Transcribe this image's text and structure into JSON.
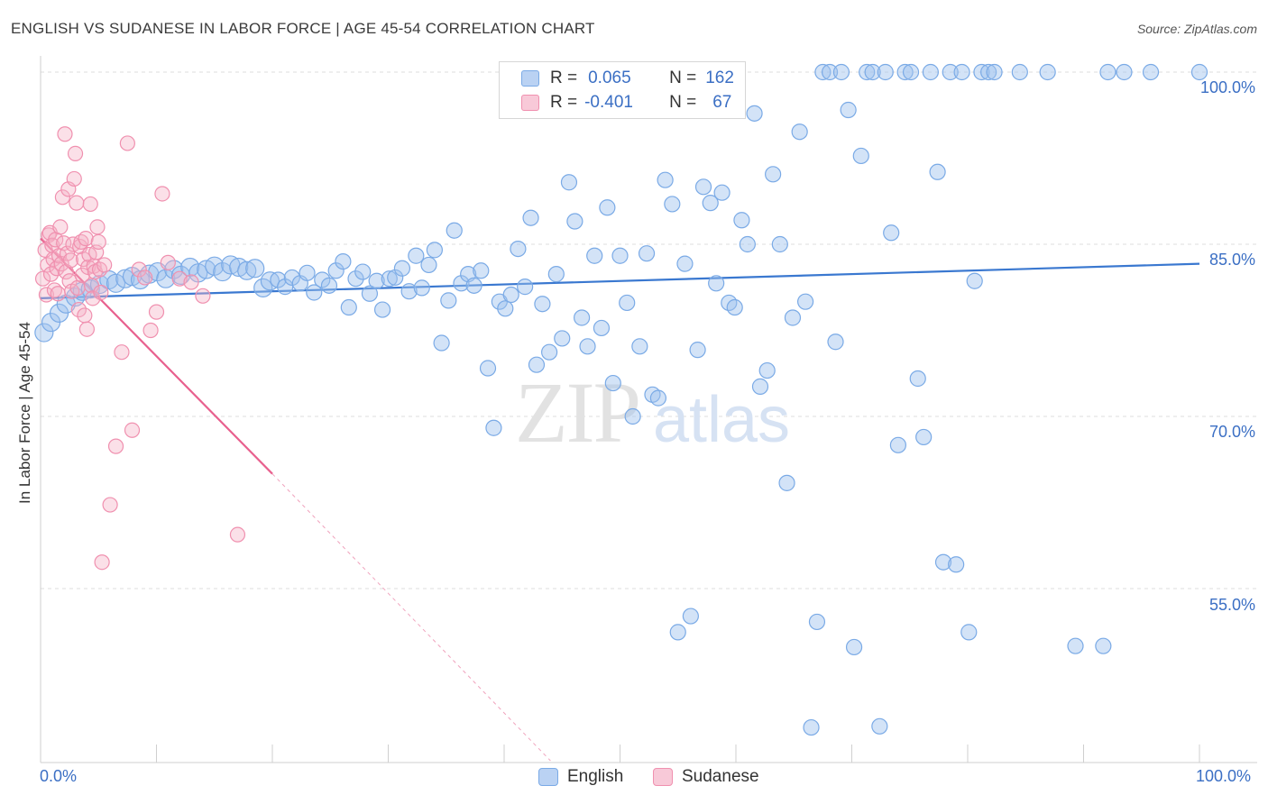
{
  "title": "ENGLISH VS SUDANESE IN LABOR FORCE | AGE 45-54 CORRELATION CHART",
  "source": "Source: ZipAtlas.com",
  "legend": {
    "rows": [
      {
        "r_label": "R =",
        "r_value": "0.065",
        "n_label": "N =",
        "n_value": "162",
        "color": "#9ec0ee"
      },
      {
        "r_label": "R =",
        "r_value": "-0.401",
        "n_label": "N =",
        "n_value": "67",
        "color": "#f5b1c6"
      }
    ]
  },
  "bottom_legend": [
    {
      "label": "English",
      "color": "#9ec0ee"
    },
    {
      "label": "Sudanese",
      "color": "#f5b1c6"
    }
  ],
  "chart_data": {
    "type": "scatter",
    "title": "ENGLISH VS SUDANESE IN LABOR FORCE | AGE 45-54 CORRELATION CHART",
    "xlabel": "",
    "ylabel": "In Labor Force | Age 45-54",
    "xlim": [
      0,
      100
    ],
    "ylim": [
      40,
      101
    ],
    "x_tick_labels": [
      "0.0%",
      "100.0%"
    ],
    "y_tick_values": [
      55,
      70,
      85,
      100
    ],
    "y_tick_labels": [
      "55.0%",
      "70.0%",
      "85.0%",
      "100.0%"
    ],
    "grid": true,
    "legend_position": "top-center",
    "watermark": "ZIPatlas",
    "series": [
      {
        "name": "English",
        "color": "#7aaae6",
        "trend": {
          "x": [
            0,
            100
          ],
          "y": [
            80.3,
            83.3
          ]
        },
        "points": [
          [
            0.3,
            77.3
          ],
          [
            0.9,
            78.2
          ],
          [
            1.6,
            79.0
          ],
          [
            2.2,
            79.8
          ],
          [
            3.0,
            80.4
          ],
          [
            3.6,
            80.9
          ],
          [
            4.3,
            81.1
          ],
          [
            5.1,
            81.5
          ],
          [
            5.9,
            81.9
          ],
          [
            6.5,
            81.6
          ],
          [
            7.3,
            82.0
          ],
          [
            7.9,
            82.2
          ],
          [
            8.6,
            81.9
          ],
          [
            9.4,
            82.4
          ],
          [
            10.1,
            82.6
          ],
          [
            10.8,
            82.0
          ],
          [
            11.5,
            82.8
          ],
          [
            12.1,
            82.3
          ],
          [
            12.9,
            83.0
          ],
          [
            13.6,
            82.5
          ],
          [
            14.3,
            82.8
          ],
          [
            15.0,
            83.1
          ],
          [
            15.7,
            82.6
          ],
          [
            16.4,
            83.2
          ],
          [
            17.1,
            83.0
          ],
          [
            17.8,
            82.7
          ],
          [
            18.5,
            82.9
          ],
          [
            19.2,
            81.2
          ],
          [
            19.8,
            81.8
          ],
          [
            20.5,
            81.9
          ],
          [
            21.1,
            81.3
          ],
          [
            21.7,
            82.1
          ],
          [
            22.4,
            81.6
          ],
          [
            23.0,
            82.5
          ],
          [
            23.6,
            80.8
          ],
          [
            24.3,
            81.9
          ],
          [
            24.9,
            81.4
          ],
          [
            25.5,
            82.7
          ],
          [
            26.1,
            83.5
          ],
          [
            26.6,
            79.5
          ],
          [
            27.2,
            82.0
          ],
          [
            27.8,
            82.6
          ],
          [
            28.4,
            80.7
          ],
          [
            29.0,
            81.8
          ],
          [
            29.5,
            79.3
          ],
          [
            30.1,
            82.0
          ],
          [
            30.6,
            82.1
          ],
          [
            31.2,
            82.9
          ],
          [
            31.8,
            80.9
          ],
          [
            32.4,
            84.0
          ],
          [
            32.9,
            81.2
          ],
          [
            33.5,
            83.2
          ],
          [
            34.0,
            84.5
          ],
          [
            34.6,
            76.4
          ],
          [
            35.2,
            80.1
          ],
          [
            35.7,
            86.2
          ],
          [
            36.3,
            81.6
          ],
          [
            36.9,
            82.4
          ],
          [
            37.4,
            81.4
          ],
          [
            38.0,
            82.7
          ],
          [
            38.6,
            74.2
          ],
          [
            39.1,
            69.0
          ],
          [
            39.6,
            80.0
          ],
          [
            40.1,
            79.4
          ],
          [
            40.6,
            80.6
          ],
          [
            41.2,
            84.6
          ],
          [
            41.8,
            81.3
          ],
          [
            42.3,
            87.3
          ],
          [
            42.8,
            74.5
          ],
          [
            43.3,
            79.8
          ],
          [
            43.9,
            75.6
          ],
          [
            44.5,
            82.4
          ],
          [
            45.0,
            76.8
          ],
          [
            45.6,
            90.4
          ],
          [
            46.1,
            87.0
          ],
          [
            46.7,
            78.6
          ],
          [
            47.2,
            76.1
          ],
          [
            47.8,
            84.0
          ],
          [
            48.4,
            77.7
          ],
          [
            48.9,
            88.2
          ],
          [
            49.4,
            72.9
          ],
          [
            50.0,
            84.0
          ],
          [
            50.6,
            79.9
          ],
          [
            51.1,
            70.0
          ],
          [
            51.7,
            76.1
          ],
          [
            52.3,
            84.2
          ],
          [
            52.8,
            71.9
          ],
          [
            53.3,
            71.6
          ],
          [
            53.9,
            90.6
          ],
          [
            54.5,
            88.5
          ],
          [
            55.0,
            51.2
          ],
          [
            55.6,
            83.3
          ],
          [
            56.1,
            52.6
          ],
          [
            56.7,
            75.8
          ],
          [
            57.2,
            90.0
          ],
          [
            57.8,
            88.6
          ],
          [
            58.3,
            81.6
          ],
          [
            58.8,
            89.5
          ],
          [
            59.4,
            79.9
          ],
          [
            59.9,
            79.5
          ],
          [
            60.5,
            87.1
          ],
          [
            61.0,
            85.0
          ],
          [
            61.6,
            96.4
          ],
          [
            62.1,
            72.6
          ],
          [
            62.7,
            74.0
          ],
          [
            63.2,
            91.1
          ],
          [
            63.8,
            85.0
          ],
          [
            64.4,
            64.2
          ],
          [
            64.9,
            78.6
          ],
          [
            65.5,
            94.8
          ],
          [
            66.0,
            80.0
          ],
          [
            66.5,
            42.9
          ],
          [
            67.0,
            52.1
          ],
          [
            67.5,
            100.0
          ],
          [
            68.1,
            100.0
          ],
          [
            68.6,
            76.5
          ],
          [
            69.1,
            100.0
          ],
          [
            69.7,
            96.7
          ],
          [
            70.2,
            49.9
          ],
          [
            70.8,
            92.7
          ],
          [
            71.3,
            100.0
          ],
          [
            71.8,
            100.0
          ],
          [
            72.4,
            43.0
          ],
          [
            72.9,
            100.0
          ],
          [
            73.4,
            86.0
          ],
          [
            74.0,
            67.5
          ],
          [
            74.6,
            100.0
          ],
          [
            75.1,
            100.0
          ],
          [
            75.7,
            73.3
          ],
          [
            76.2,
            68.2
          ],
          [
            76.8,
            100.0
          ],
          [
            77.4,
            91.3
          ],
          [
            77.9,
            57.3
          ],
          [
            78.5,
            100.0
          ],
          [
            79.0,
            57.1
          ],
          [
            79.5,
            100.0
          ],
          [
            80.1,
            51.2
          ],
          [
            80.6,
            81.8
          ],
          [
            81.2,
            100.0
          ],
          [
            81.8,
            100.0
          ],
          [
            82.3,
            100.0
          ],
          [
            84.5,
            100.0
          ],
          [
            86.9,
            100.0
          ],
          [
            89.3,
            50.0
          ],
          [
            91.7,
            50.0
          ],
          [
            92.1,
            100.0
          ],
          [
            93.5,
            100.0
          ],
          [
            95.8,
            100.0
          ],
          [
            100.0,
            100.0
          ]
        ]
      },
      {
        "name": "Sudanese",
        "color": "#f090af",
        "trend": {
          "x": [
            0,
            20
          ],
          "y": [
            85.5,
            65.0
          ]
        },
        "trend_extension": {
          "x": [
            20,
            44
          ],
          "y": [
            65.0,
            40.0
          ]
        },
        "points": [
          [
            0.2,
            82.0
          ],
          [
            0.4,
            84.5
          ],
          [
            0.5,
            80.6
          ],
          [
            0.6,
            83.2
          ],
          [
            0.7,
            85.8
          ],
          [
            0.8,
            86.0
          ],
          [
            0.9,
            82.4
          ],
          [
            1.0,
            84.9
          ],
          [
            1.1,
            83.7
          ],
          [
            1.2,
            81.0
          ],
          [
            1.3,
            85.4
          ],
          [
            1.4,
            82.9
          ],
          [
            1.5,
            80.7
          ],
          [
            1.6,
            84.0
          ],
          [
            1.7,
            86.5
          ],
          [
            1.8,
            83.3
          ],
          [
            1.9,
            89.1
          ],
          [
            2.0,
            85.1
          ],
          [
            2.1,
            94.6
          ],
          [
            2.2,
            82.6
          ],
          [
            2.3,
            84.2
          ],
          [
            2.4,
            89.8
          ],
          [
            2.5,
            81.8
          ],
          [
            2.6,
            83.6
          ],
          [
            2.7,
            80.9
          ],
          [
            2.8,
            85.0
          ],
          [
            2.9,
            90.7
          ],
          [
            3.0,
            92.9
          ],
          [
            3.1,
            88.6
          ],
          [
            3.2,
            81.2
          ],
          [
            3.3,
            79.3
          ],
          [
            3.4,
            84.8
          ],
          [
            3.5,
            85.2
          ],
          [
            3.6,
            82.3
          ],
          [
            3.7,
            83.7
          ],
          [
            3.8,
            78.8
          ],
          [
            3.9,
            85.5
          ],
          [
            4.0,
            77.6
          ],
          [
            4.1,
            83.0
          ],
          [
            4.2,
            84.1
          ],
          [
            4.3,
            88.5
          ],
          [
            4.4,
            81.4
          ],
          [
            4.5,
            80.3
          ],
          [
            4.6,
            83.1
          ],
          [
            4.7,
            82.6
          ],
          [
            4.8,
            84.3
          ],
          [
            4.9,
            86.5
          ],
          [
            5.0,
            85.2
          ],
          [
            5.1,
            82.8
          ],
          [
            5.2,
            80.8
          ],
          [
            5.3,
            57.3
          ],
          [
            5.5,
            83.2
          ],
          [
            6.0,
            62.3
          ],
          [
            6.5,
            67.4
          ],
          [
            7.0,
            75.6
          ],
          [
            7.5,
            93.8
          ],
          [
            7.9,
            68.8
          ],
          [
            8.5,
            82.8
          ],
          [
            9.0,
            82.1
          ],
          [
            9.5,
            77.5
          ],
          [
            10.0,
            79.1
          ],
          [
            10.5,
            89.4
          ],
          [
            11.0,
            83.4
          ],
          [
            12.0,
            82.0
          ],
          [
            13.0,
            81.7
          ],
          [
            14.0,
            80.5
          ],
          [
            17.0,
            59.7
          ]
        ]
      }
    ]
  }
}
